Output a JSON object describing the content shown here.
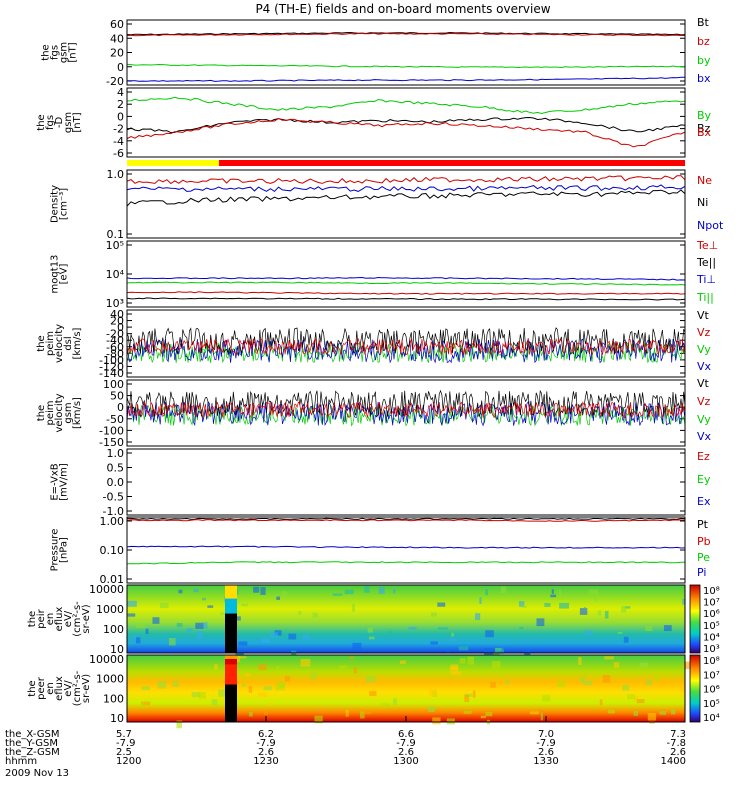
{
  "chart_data": {
    "type": "line",
    "title": "P4 (TH-E) fields and on-board moments overview",
    "date_label": "2009 Nov 13",
    "panels": [
      {
        "id": "fgs",
        "ylabel": [
          "the",
          "fgs",
          "gsm",
          "[nT]"
        ],
        "yticks": [
          "60",
          "40",
          "20",
          "0",
          "-20"
        ],
        "ylim": [
          -20,
          60
        ],
        "legend": [
          {
            "label": "Bt",
            "color": "#000000"
          },
          {
            "label": "bz",
            "color": "#cc0000"
          },
          {
            "label": "by",
            "color": "#00cc00"
          },
          {
            "label": "bx",
            "color": "#0000cc"
          }
        ],
        "series": [
          {
            "name": "Bt",
            "color": "#000000",
            "values": [
              42,
              43,
              44,
              44,
              43,
              42
            ]
          },
          {
            "name": "bz",
            "color": "#cc0000",
            "values": [
              41,
              42,
              43,
              43,
              42,
              41
            ]
          },
          {
            "name": "by",
            "color": "#00cc00",
            "values": [
              5,
              4,
              3,
              2,
              2,
              3
            ]
          },
          {
            "name": "bx",
            "color": "#0000cc",
            "values": [
              -15,
              -15,
              -14,
              -14,
              -13,
              -11
            ]
          }
        ]
      },
      {
        "id": "fgs_dsl",
        "ylabel": [
          "the",
          "fgs",
          "-D",
          "gsm",
          "[nT]"
        ],
        "yticks": [
          "4",
          "2",
          "0",
          "-2",
          "-4",
          "-6"
        ],
        "ylim": [
          -7,
          4
        ],
        "legend": [
          {
            "label": "By",
            "color": "#00cc00"
          },
          {
            "label": "Bz",
            "color": "#000000"
          },
          {
            "label": "Bx",
            "color": "#cc0000"
          }
        ],
        "series": [
          {
            "name": "By",
            "color": "#00cc00",
            "values": [
              2,
              2.5,
              1.5,
              0.5,
              1,
              2,
              1.5,
              1,
              0,
              0.5,
              1.5,
              2
            ]
          },
          {
            "name": "Bz",
            "color": "#000000",
            "values": [
              -2.5,
              -3,
              -1.5,
              -1,
              -1.5,
              -1.2,
              -1.4,
              -1,
              -0.8,
              -1.5,
              -3,
              -2
            ]
          },
          {
            "name": "Bx",
            "color": "#cc0000",
            "values": [
              -4,
              -3,
              -1.8,
              -1,
              -1.5,
              -2,
              -1.6,
              -2,
              -2.5,
              -3,
              -5.5,
              -3
            ]
          }
        ]
      },
      {
        "id": "density",
        "ylabel": [
          "Density",
          "[cm⁻³]"
        ],
        "yticks": [
          "1.0",
          "0.1"
        ],
        "ylim": [
          0.1,
          1.2
        ],
        "scale": "log",
        "legend": [
          {
            "label": "Ne",
            "color": "#cc0000"
          },
          {
            "label": "Ni",
            "color": "#000000"
          },
          {
            "label": "Npot",
            "color": "#0000cc"
          }
        ],
        "series": [
          {
            "name": "Ne",
            "color": "#cc0000",
            "values": [
              0.8,
              0.8,
              0.8,
              0.8,
              0.85,
              0.85,
              0.88,
              0.9
            ]
          },
          {
            "name": "Ni",
            "color": "#000000",
            "values": [
              0.35,
              0.4,
              0.42,
              0.45,
              0.47,
              0.5,
              0.5,
              0.55
            ]
          },
          {
            "name": "Npot",
            "color": "#0000cc",
            "values": [
              0.6,
              0.6,
              0.6,
              0.6,
              0.6,
              0.62,
              0.62,
              0.65
            ]
          }
        ]
      },
      {
        "id": "temperature",
        "ylabel": [
          "moqt13",
          "[eV]"
        ],
        "yticks": [
          "10⁵",
          "10⁴",
          "10³"
        ],
        "ylim": [
          200,
          100000
        ],
        "scale": "log",
        "legend": [
          {
            "label": "Te⊥",
            "color": "#cc0000"
          },
          {
            "label": "Te||",
            "color": "#000000"
          },
          {
            "label": "Ti⊥",
            "color": "#0000cc"
          },
          {
            "label": "Ti||",
            "color": "#00cc00"
          }
        ],
        "series": [
          {
            "name": "Ti⊥",
            "color": "#0000cc",
            "values": [
              3000,
              3000,
              3000,
              3100,
              3000,
              2900,
              2800,
              2600
            ]
          },
          {
            "name": "Ti||",
            "color": "#00cc00",
            "values": [
              2000,
              2000,
              2000,
              1900,
              1900,
              1800,
              1700,
              1600
            ]
          },
          {
            "name": "Te⊥",
            "color": "#cc0000",
            "values": [
              800,
              800,
              750,
              700,
              700,
              700,
              700,
              700
            ]
          },
          {
            "name": "Te||",
            "color": "#000000",
            "values": [
              450,
              450,
              440,
              430,
              420,
              420,
              410,
              400
            ]
          }
        ]
      },
      {
        "id": "peim_velocity",
        "ylabel": [
          "the",
          "peim",
          "velocity",
          "dsl",
          "[km/s]"
        ],
        "yticks": [
          "40",
          "20",
          "0",
          "-20",
          "-40",
          "-60",
          "-80",
          "-100",
          "-120",
          "-140"
        ],
        "ylim": [
          -150,
          45
        ],
        "legend": [
          {
            "label": "Vt",
            "color": "#000000"
          },
          {
            "label": "Vz",
            "color": "#cc0000"
          },
          {
            "label": "Vy",
            "color": "#00cc00"
          },
          {
            "label": "Vx",
            "color": "#0000cc"
          }
        ]
      },
      {
        "id": "peim_velocity_gsm",
        "ylabel": [
          "the",
          "peim",
          "velocity",
          "gsm",
          "[km/s]"
        ],
        "yticks": [
          "100",
          "50",
          "0",
          "-50",
          "-100",
          "-150"
        ],
        "ylim": [
          -150,
          130
        ],
        "legend": [
          {
            "label": "Vt",
            "color": "#000000"
          },
          {
            "label": "Vz",
            "color": "#cc0000"
          },
          {
            "label": "Vy",
            "color": "#00cc00"
          },
          {
            "label": "Vx",
            "color": "#0000cc"
          }
        ]
      },
      {
        "id": "efield",
        "ylabel": [
          "E=-VxB",
          "[mV/m]"
        ],
        "yticks": [
          "1.0",
          "0.5",
          "0.0",
          "-0.5",
          "-1.0"
        ],
        "ylim": [
          -1,
          1
        ],
        "legend": [
          {
            "label": "Ez",
            "color": "#cc0000"
          },
          {
            "label": "Ey",
            "color": "#00cc00"
          },
          {
            "label": "Ex",
            "color": "#0000cc"
          }
        ]
      },
      {
        "id": "pressure",
        "ylabel": [
          "Pressure",
          "[nPa]"
        ],
        "yticks": [
          "1.00",
          "0.10",
          "0.01"
        ],
        "ylim": [
          0.01,
          1.2
        ],
        "scale": "log",
        "legend": [
          {
            "label": "Pt",
            "color": "#000000"
          },
          {
            "label": "Pb",
            "color": "#cc0000"
          },
          {
            "label": "Pe",
            "color": "#00cc00"
          },
          {
            "label": "Pi",
            "color": "#0000cc"
          }
        ],
        "series": [
          {
            "name": "Pt",
            "color": "#000000",
            "values": [
              1.05,
              1.05,
              1.05,
              1.05,
              1.05,
              1.05
            ]
          },
          {
            "name": "Pb",
            "color": "#cc0000",
            "values": [
              0.95,
              0.95,
              0.95,
              0.95,
              0.9,
              0.95
            ]
          },
          {
            "name": "Pi",
            "color": "#0000cc",
            "values": [
              0.14,
              0.14,
              0.135,
              0.13,
              0.13,
              0.13
            ]
          },
          {
            "name": "Pe",
            "color": "#00cc00",
            "values": [
              0.04,
              0.045,
              0.045,
              0.045,
              0.045,
              0.045
            ]
          }
        ]
      },
      {
        "id": "peir_eflux",
        "type": "heatmap",
        "ylabel": [
          "the",
          "peir",
          "en",
          "eflux",
          "eV/",
          "(cm²-s-",
          "sr-eV)"
        ],
        "yticks": [
          "10000",
          "1000",
          "100",
          "10"
        ],
        "colorbar": [
          "10⁸",
          "10⁷",
          "10⁶",
          "10⁵",
          "10⁴",
          "10³"
        ]
      },
      {
        "id": "peer_eflux",
        "type": "heatmap",
        "ylabel": [
          "the",
          "peer",
          "en",
          "eflux",
          "eV/",
          "(cm²-s-",
          "sr-eV)"
        ],
        "yticks": [
          "10000",
          "1000",
          "100",
          "10"
        ],
        "colorbar": [
          "10⁸",
          "10⁷",
          "10⁶",
          "10⁵",
          "10⁴"
        ]
      }
    ],
    "x_axis": {
      "row_labels": [
        "the_X-GSM",
        "the_Y-GSM",
        "the_Z-GSM",
        "hhmm"
      ],
      "columns": [
        {
          "values": [
            "5.7",
            "-7.9",
            "2.5",
            "1200"
          ]
        },
        {
          "values": [
            "6.2",
            "-7.9",
            "2.6",
            "1230"
          ]
        },
        {
          "values": [
            "6.6",
            "-7.9",
            "2.6",
            "1300"
          ]
        },
        {
          "values": [
            "7.0",
            "-7.9",
            "2.6",
            "1330"
          ]
        },
        {
          "values": [
            "7.3",
            "-7.8",
            "2.6",
            "1400"
          ]
        }
      ]
    }
  }
}
